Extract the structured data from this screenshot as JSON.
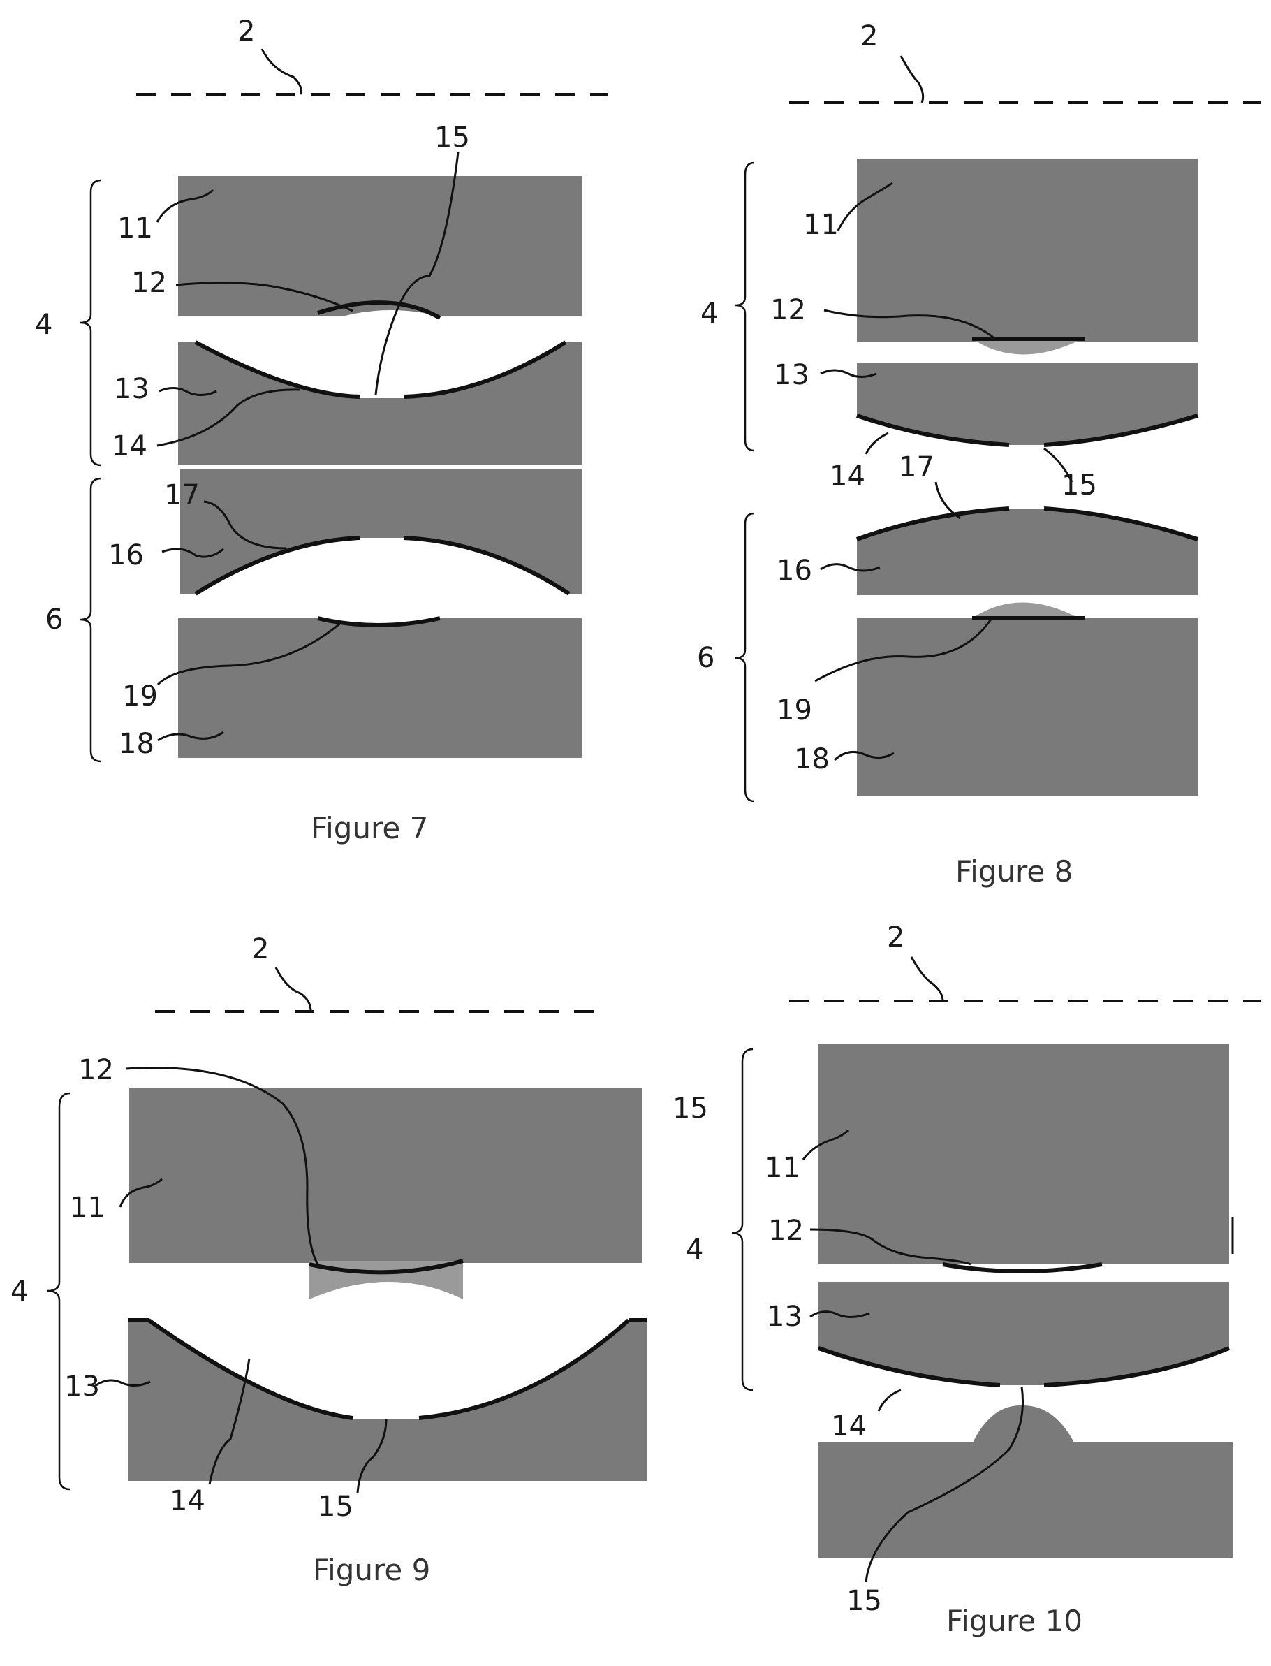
{
  "sheet": {
    "fig7": {
      "caption": "Figure 7",
      "labels": {
        "l2": "2",
        "l4": "4",
        "l6": "6",
        "l11": "11",
        "l12": "12",
        "l13": "13",
        "l14": "14",
        "l15": "15",
        "l16": "16",
        "l17": "17",
        "l18": "18",
        "l19": "19"
      }
    },
    "fig8": {
      "caption": "Figure 8",
      "labels": {
        "l2": "2",
        "l4": "4",
        "l6": "6",
        "l11": "11",
        "l12": "12",
        "l13": "13",
        "l14": "14",
        "l15": "15",
        "l16": "16",
        "l17": "17",
        "l18": "18",
        "l19": "19"
      }
    },
    "fig9": {
      "caption": "Figure 9",
      "labels": {
        "l2": "2",
        "l4": "4",
        "l11": "11",
        "l12": "12",
        "l13": "13",
        "l14": "14",
        "l15": "15"
      }
    },
    "fig10": {
      "caption": "Figure 10",
      "labels": {
        "l2": "2",
        "l4": "4",
        "l11": "11",
        "l12": "12",
        "l13": "13",
        "l14": "14",
        "l15a": "15",
        "l15b": "15"
      }
    }
  },
  "colors": {
    "element_fill": "#7a7a7a",
    "line": "#111111",
    "background": "#ffffff"
  }
}
